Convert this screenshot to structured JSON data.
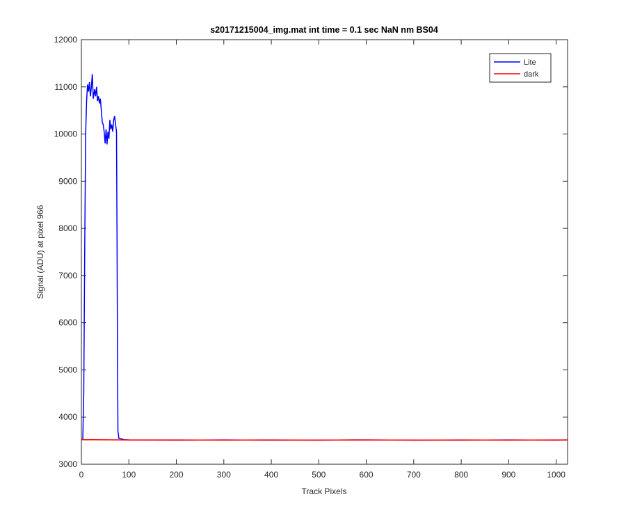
{
  "chart_data": {
    "type": "line",
    "title": "s20171215004_img.mat int time = 0.1 sec  NaN nm BS04",
    "x_label": "Track Pixels",
    "y_label": "Signal (ADU) at pixel 966",
    "xlim": [
      0,
      1024
    ],
    "ylim": [
      3000,
      12000
    ],
    "xticks": [
      0,
      100,
      200,
      300,
      400,
      500,
      600,
      700,
      800,
      900,
      1000
    ],
    "yticks": [
      3000,
      4000,
      5000,
      6000,
      7000,
      8000,
      9000,
      10000,
      11000,
      12000
    ],
    "legend_position": "upper-right",
    "series": [
      {
        "name": "Lite",
        "color": "#0000ff",
        "x": [
          0,
          3,
          5,
          7,
          9,
          11,
          13,
          15,
          17,
          19,
          21,
          23,
          25,
          28,
          30,
          32,
          34,
          36,
          38,
          40,
          42,
          44,
          46,
          48,
          50,
          52,
          54,
          56,
          58,
          60,
          62,
          64,
          66,
          68,
          70,
          72,
          74,
          75,
          76,
          77,
          79,
          90,
          100,
          200,
          300,
          400,
          500,
          600,
          700,
          800,
          900,
          1000,
          1024
        ],
        "values": [
          3520,
          3530,
          4500,
          7500,
          10000,
          10700,
          11050,
          10900,
          11100,
          10800,
          11000,
          11270,
          10750,
          10950,
          10800,
          11000,
          10700,
          10800,
          10650,
          10750,
          10500,
          10250,
          10200,
          10050,
          9800,
          10100,
          9780,
          10050,
          9900,
          10300,
          10100,
          10200,
          10050,
          10300,
          10380,
          10200,
          10050,
          8000,
          5500,
          3700,
          3550,
          3520,
          3515,
          3510,
          3515,
          3510,
          3510,
          3515,
          3510,
          3510,
          3515,
          3510,
          3515
        ]
      },
      {
        "name": "dark",
        "color": "#ff0000",
        "x": [
          0,
          100,
          200,
          300,
          400,
          500,
          600,
          700,
          800,
          900,
          1000,
          1024
        ],
        "values": [
          3520,
          3515,
          3515,
          3510,
          3515,
          3510,
          3515,
          3510,
          3515,
          3510,
          3515,
          3515
        ]
      }
    ]
  }
}
